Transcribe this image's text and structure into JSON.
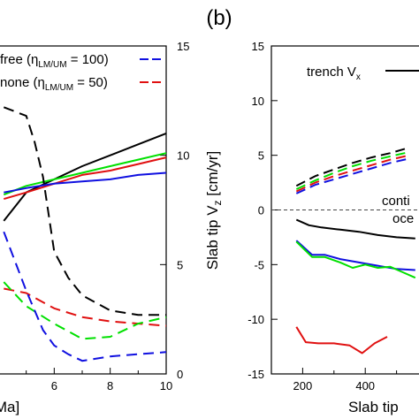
{
  "panel_label": "(b)",
  "colors": {
    "black": "#000000",
    "green": "#00e000",
    "red": "#e01010",
    "blue": "#1010e0",
    "dashed_gray": "#555555"
  },
  "chart_data": [
    {
      "type": "line",
      "panel": "left (cropped)",
      "xlabel": "Ma]",
      "ylabel_right": "Slab tip V",
      "ylabel_right_sub": "z",
      "ylabel_right_unit": "[cm/yr]",
      "xlim": [
        4.0,
        10.0
      ],
      "ylim_right": [
        0,
        15
      ],
      "x_ticks": [
        6,
        8,
        10
      ],
      "y_ticks_right": [
        0,
        5,
        10,
        15
      ],
      "legend": [
        {
          "prefix": "free (η",
          "sub": "LM/UM",
          "suffix": " = 100)",
          "color": "blue",
          "style": "dashed"
        },
        {
          "prefix": "none (η",
          "sub": "LM/UM",
          "suffix": " = 50)",
          "color": "red",
          "style": "dashed"
        }
      ],
      "series": [
        {
          "color": "black",
          "style": "solid",
          "x": [
            4.2,
            5.0,
            6.0,
            7.0,
            8.0,
            9.0,
            10.0
          ],
          "y": [
            7.0,
            8.3,
            8.9,
            9.5,
            10.0,
            10.5,
            11.0
          ]
        },
        {
          "color": "green",
          "style": "solid",
          "x": [
            4.2,
            5.0,
            6.0,
            7.0,
            8.0,
            9.0,
            10.0
          ],
          "y": [
            8.2,
            8.6,
            8.9,
            9.2,
            9.5,
            9.8,
            10.1
          ]
        },
        {
          "color": "red",
          "style": "solid",
          "x": [
            4.2,
            5.0,
            6.0,
            7.0,
            8.0,
            9.0,
            10.0
          ],
          "y": [
            8.0,
            8.3,
            8.7,
            9.1,
            9.3,
            9.6,
            9.9
          ]
        },
        {
          "color": "blue",
          "style": "solid",
          "x": [
            4.2,
            5.0,
            6.0,
            7.0,
            8.0,
            9.0,
            10.0
          ],
          "y": [
            8.3,
            8.5,
            8.7,
            8.8,
            8.9,
            9.1,
            9.2
          ]
        },
        {
          "color": "black",
          "style": "dashed",
          "x": [
            4.2,
            5.0,
            5.3,
            5.6,
            6.0,
            6.5,
            7.0,
            8.0,
            9.0,
            10.0
          ],
          "y": [
            12.2,
            11.8,
            10.6,
            9.0,
            5.6,
            4.4,
            3.6,
            2.9,
            2.7,
            2.7
          ]
        },
        {
          "color": "red",
          "style": "dashed",
          "x": [
            4.2,
            5.0,
            6.0,
            7.0,
            8.0,
            9.0,
            10.0
          ],
          "y": [
            3.9,
            3.7,
            3.0,
            2.6,
            2.4,
            2.3,
            2.2
          ]
        },
        {
          "color": "green",
          "style": "dashed",
          "x": [
            4.2,
            5.0,
            6.0,
            7.0,
            8.0,
            9.0,
            10.0
          ],
          "y": [
            4.2,
            3.1,
            2.3,
            1.6,
            1.7,
            2.3,
            2.6
          ]
        },
        {
          "color": "blue",
          "style": "dashed",
          "x": [
            4.2,
            5.0,
            5.6,
            6.0,
            6.5,
            7.0,
            8.0,
            9.0,
            10.0
          ],
          "y": [
            6.5,
            3.8,
            2.0,
            1.3,
            0.9,
            0.6,
            0.8,
            0.9,
            1.0
          ]
        }
      ]
    },
    {
      "type": "line",
      "panel": "right (cropped)",
      "xlabel": "Slab tip",
      "xlim": [
        100,
        600
      ],
      "ylim": [
        -15,
        15
      ],
      "x_ticks": [
        200,
        400
      ],
      "y_ticks": [
        15,
        10,
        5,
        0,
        -5,
        -10,
        -15
      ],
      "legend": [
        {
          "prefix": "trench V",
          "sub": "x",
          "suffix": "",
          "color": "black",
          "style": "solid"
        }
      ],
      "annotations": [
        "conti",
        "oce"
      ],
      "zero_line": true,
      "series": [
        {
          "color": "black",
          "style": "dashed",
          "x": [
            180,
            240,
            300,
            360,
            420,
            480,
            540
          ],
          "y": [
            2.2,
            3.1,
            3.7,
            4.3,
            4.8,
            5.2,
            5.7
          ]
        },
        {
          "color": "green",
          "style": "dashed",
          "x": [
            180,
            240,
            300,
            360,
            420,
            480,
            540
          ],
          "y": [
            1.9,
            2.7,
            3.4,
            4.0,
            4.5,
            4.9,
            5.3
          ]
        },
        {
          "color": "red",
          "style": "dashed",
          "x": [
            180,
            240,
            300,
            360,
            420,
            480,
            540
          ],
          "y": [
            1.7,
            2.5,
            3.1,
            3.6,
            4.1,
            4.6,
            5.0
          ]
        },
        {
          "color": "blue",
          "style": "dashed",
          "x": [
            180,
            240,
            300,
            360,
            420,
            480,
            540
          ],
          "y": [
            1.5,
            2.3,
            2.8,
            3.3,
            3.8,
            4.3,
            4.7
          ]
        },
        {
          "color": "black",
          "style": "solid",
          "x": [
            180,
            220,
            260,
            320,
            380,
            440,
            500,
            560
          ],
          "y": [
            -0.9,
            -1.4,
            -1.6,
            -1.8,
            -2.0,
            -2.3,
            -2.5,
            -2.6
          ]
        },
        {
          "color": "blue",
          "style": "solid",
          "x": [
            180,
            230,
            270,
            320,
            380,
            440,
            500,
            560
          ],
          "y": [
            -2.8,
            -4.1,
            -4.1,
            -4.5,
            -4.8,
            -5.1,
            -5.4,
            -5.5
          ]
        },
        {
          "color": "green",
          "style": "solid",
          "x": [
            180,
            230,
            270,
            320,
            360,
            400,
            440,
            480,
            520,
            560
          ],
          "y": [
            -2.9,
            -4.3,
            -4.3,
            -4.8,
            -5.3,
            -5.0,
            -5.3,
            -5.2,
            -5.7,
            -6.2
          ]
        },
        {
          "color": "red",
          "style": "solid",
          "x": [
            180,
            210,
            250,
            300,
            350,
            390,
            430,
            470
          ],
          "y": [
            -10.7,
            -12.1,
            -12.2,
            -12.2,
            -12.4,
            -13.1,
            -12.2,
            -11.6
          ]
        }
      ]
    }
  ]
}
